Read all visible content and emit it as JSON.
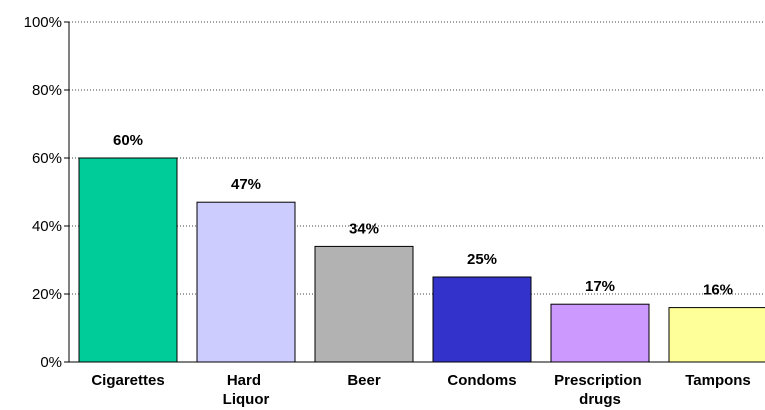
{
  "chart_data": {
    "type": "bar",
    "categories": [
      "Cigarettes",
      "Hard Liquor",
      "Beer",
      "Condoms",
      "Prescription drugs",
      "Tampons"
    ],
    "values": [
      60,
      47,
      34,
      25,
      17,
      16
    ],
    "value_labels": [
      "60%",
      "47%",
      "34%",
      "25%",
      "17%",
      "16%"
    ],
    "colors": [
      "#00cc99",
      "#ccccff",
      "#b2b2b2",
      "#3333cc",
      "#cc99ff",
      "#ffff99"
    ],
    "ylim": [
      0,
      100
    ],
    "yticks": [
      {
        "value": 0,
        "label": "0%"
      },
      {
        "value": 20,
        "label": "20%"
      },
      {
        "value": 40,
        "label": "40%"
      },
      {
        "value": 60,
        "label": "60%"
      },
      {
        "value": 80,
        "label": "80%"
      },
      {
        "value": 100,
        "label": "100%"
      }
    ],
    "grid": true
  }
}
